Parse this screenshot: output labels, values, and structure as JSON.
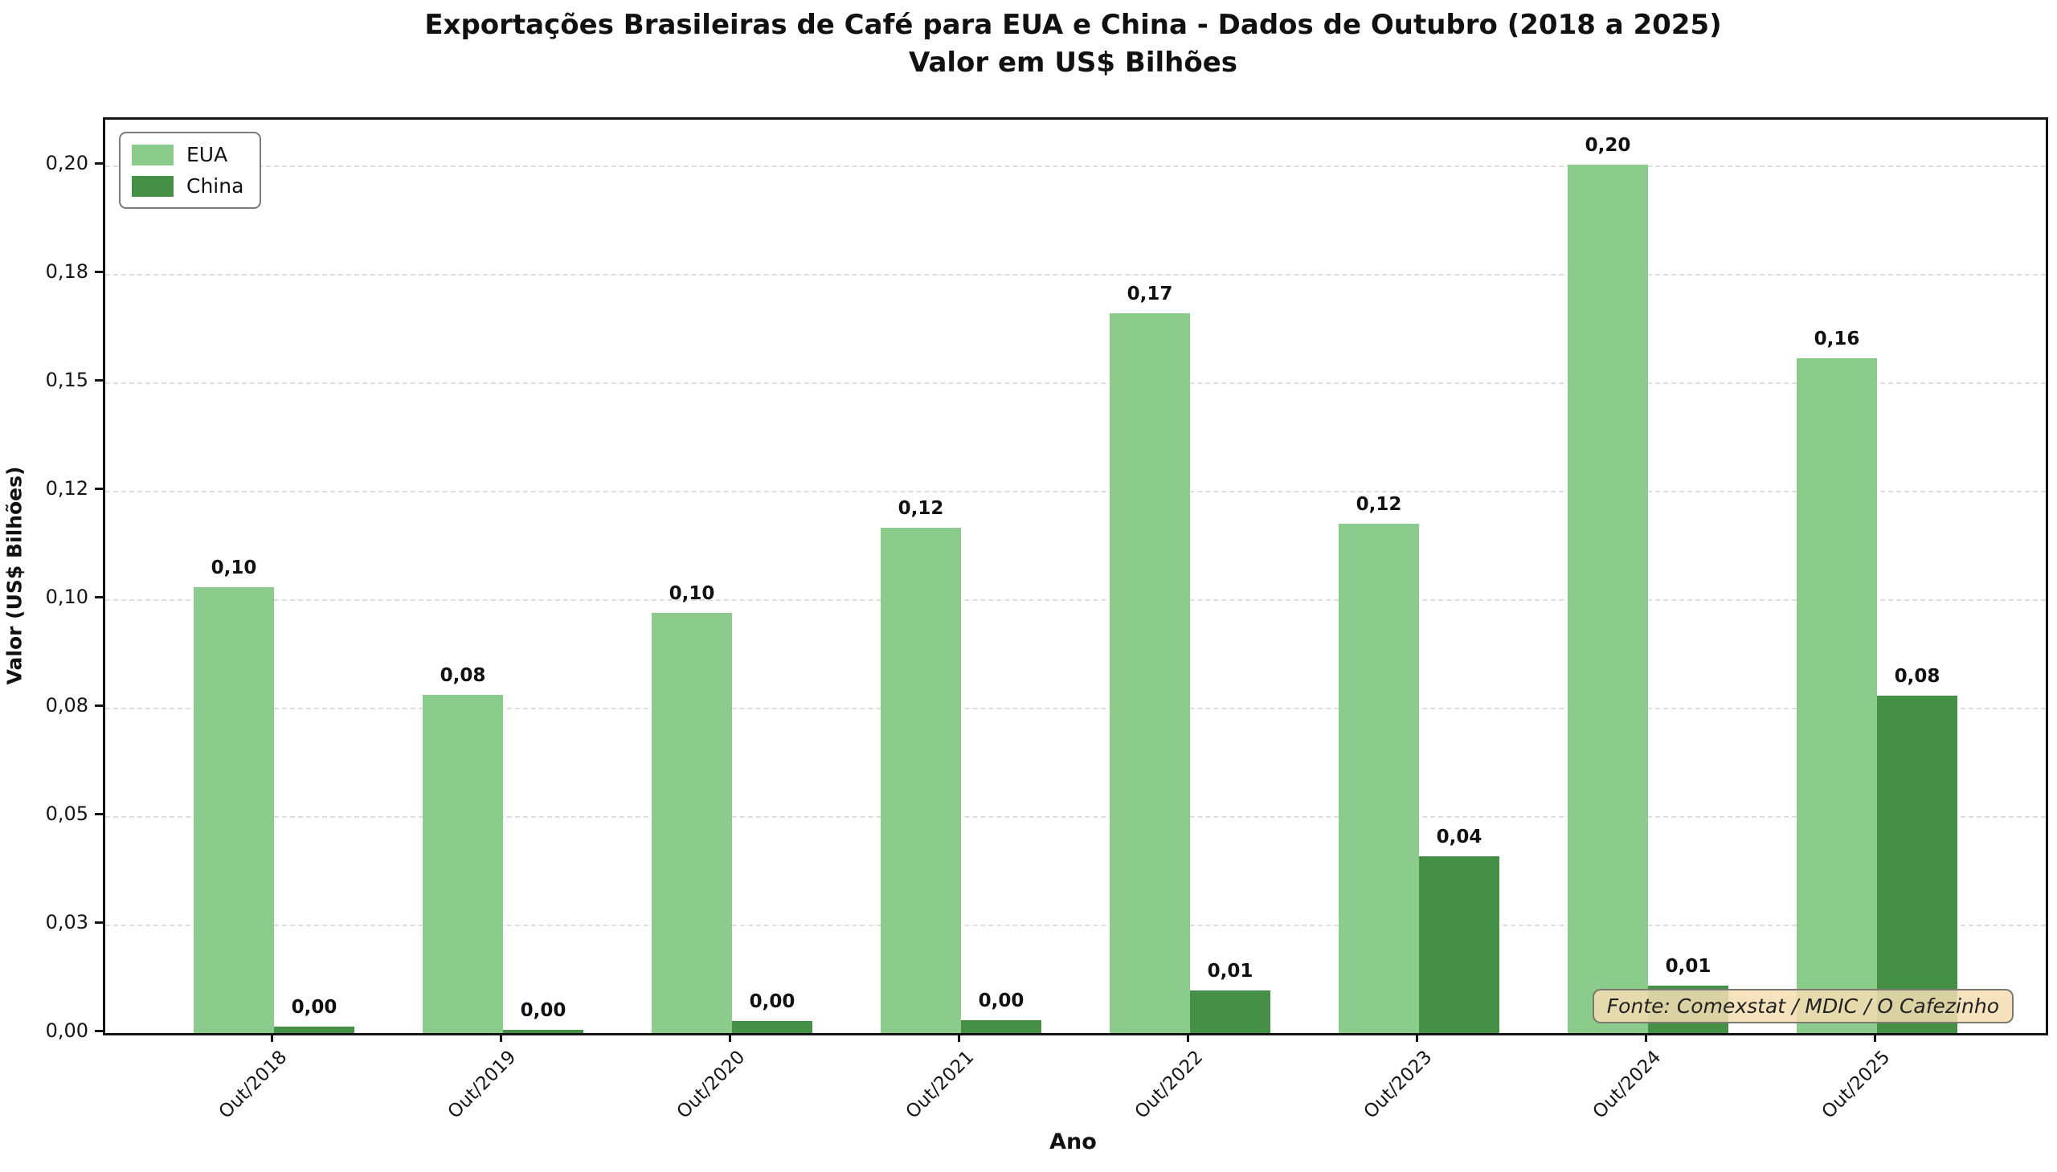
{
  "title": {
    "line1": "Exportações Brasileiras de Café para EUA e China - Dados de Outubro (2018 a 2025)",
    "line2": "Valor em US$ Bilhões"
  },
  "axes": {
    "x_label": "Ano",
    "y_label": "Valor (US$ Bilhões)"
  },
  "annotation": {
    "text": "Fonte: Comexstat / MDIC / O Cafezinho",
    "bg_color": "#F5DEB3"
  },
  "colors": {
    "eua": "#8BCB8B",
    "china": "#458F47",
    "grid": "#DEDEDE",
    "axis": "#141414"
  },
  "chart_data": {
    "type": "bar",
    "title": "Exportações Brasileiras de Café para EUA e China - Dados de Outubro (2018 a 2025)",
    "subtitle": "Valor em US$ Bilhões",
    "xlabel": "Ano",
    "ylabel": "Valor (US$ Bilhões)",
    "categories": [
      "Out/2018",
      "Out/2019",
      "Out/2020",
      "Out/2021",
      "Out/2022",
      "Out/2023",
      "Out/2024",
      "Out/2025"
    ],
    "series": [
      {
        "name": "EUA",
        "color": "#8BCB8B",
        "values": [
          0.1028,
          0.078,
          0.0968,
          0.1165,
          0.166,
          0.1175,
          0.2002,
          0.1555
        ],
        "labels": [
          "0,10",
          "0,08",
          "0,10",
          "0,12",
          "0,17",
          "0,12",
          "0,20",
          "0,16"
        ]
      },
      {
        "name": "China",
        "color": "#458F47",
        "values": [
          0.0015,
          0.0007,
          0.0028,
          0.0029,
          0.0099,
          0.0407,
          0.0109,
          0.0778
        ],
        "labels": [
          "0,00",
          "0,00",
          "0,00",
          "0,00",
          "0,01",
          "0,04",
          "0,01",
          "0,08"
        ]
      }
    ],
    "y_ticks": [
      {
        "value": 0.0,
        "label": "0,00"
      },
      {
        "value": 0.025,
        "label": "0,03"
      },
      {
        "value": 0.05,
        "label": "0,05"
      },
      {
        "value": 0.075,
        "label": "0,08"
      },
      {
        "value": 0.1,
        "label": "0,10"
      },
      {
        "value": 0.125,
        "label": "0,12"
      },
      {
        "value": 0.15,
        "label": "0,15"
      },
      {
        "value": 0.175,
        "label": "0,18"
      },
      {
        "value": 0.2,
        "label": "0,20"
      }
    ],
    "ylim": [
      0,
      0.2106
    ],
    "grid": "horizontal-dashed",
    "legend_position": "upper-left"
  }
}
